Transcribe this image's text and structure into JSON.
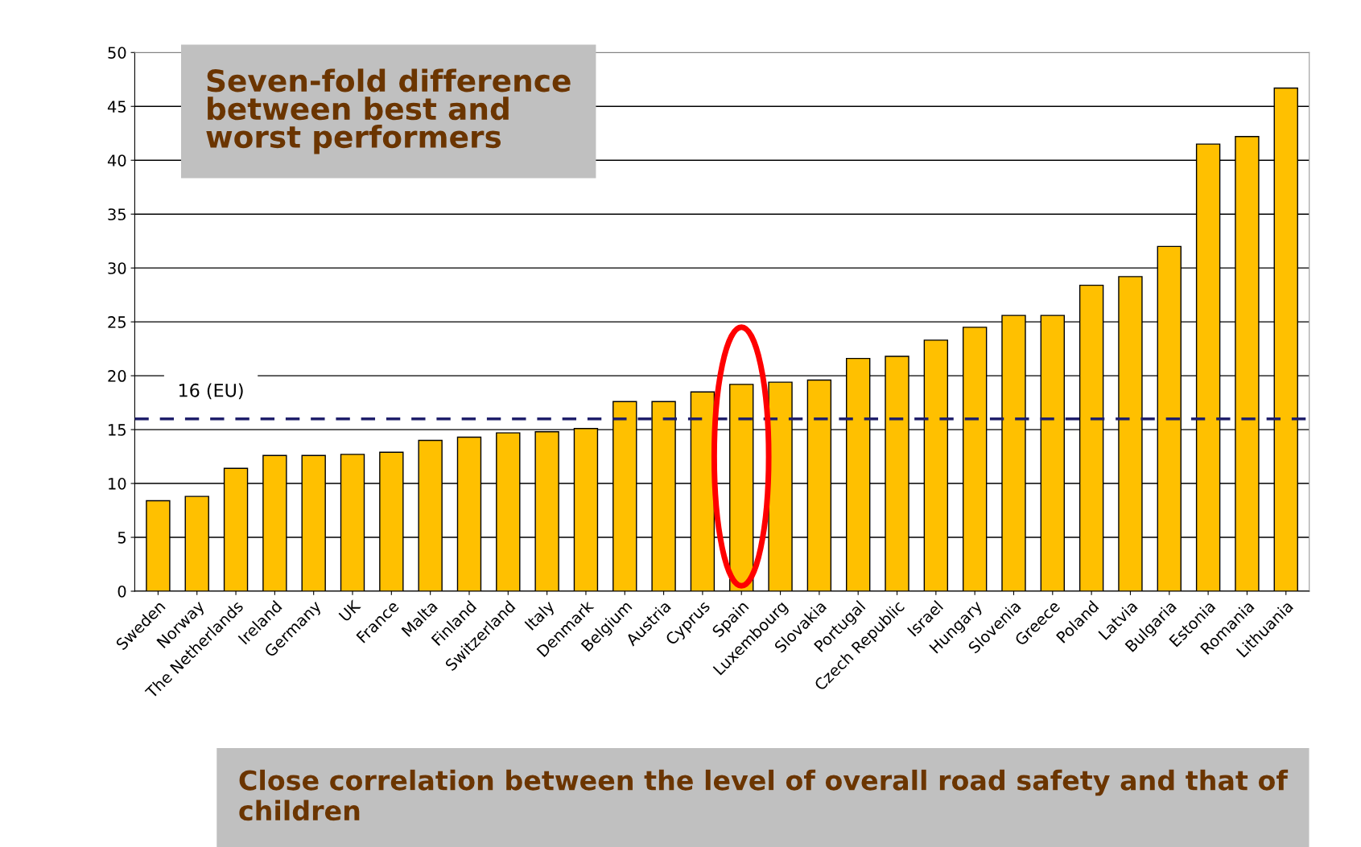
{
  "chart_data": {
    "type": "bar",
    "categories": [
      "Sweden",
      "Norway",
      "The Netherlands",
      "Ireland",
      "Germany",
      "UK",
      "France",
      "Malta",
      "Finland",
      "Switzerland",
      "Italy",
      "Denmark",
      "Belgium",
      "Austria",
      "Cyprus",
      "Spain",
      "Luxembourg",
      "Slovakia",
      "Portugal",
      "Czech Republic",
      "Israel",
      "Hungary",
      "Slovenia",
      "Greece",
      "Poland",
      "Latvia",
      "Bulgaria",
      "Estonia",
      "Romania",
      "Lithuania"
    ],
    "values": [
      8.4,
      8.8,
      11.4,
      12.6,
      12.6,
      12.7,
      12.9,
      14.0,
      14.3,
      14.7,
      14.8,
      15.1,
      17.6,
      17.6,
      18.5,
      19.2,
      19.4,
      19.6,
      21.6,
      21.8,
      23.3,
      24.5,
      25.6,
      25.6,
      28.4,
      29.2,
      32.0,
      41.5,
      42.2,
      46.7
    ],
    "color": "#ffc000",
    "ylim": [
      0,
      50
    ],
    "yticks": [
      0,
      5,
      10,
      15,
      20,
      25,
      30,
      35,
      40,
      45,
      50
    ],
    "grid": "y",
    "ref_lines": [
      {
        "axis": "y",
        "value": 16,
        "label": "16 (EU)",
        "color": "#1f1f6b",
        "line_style": "dashed"
      }
    ],
    "annotations": [
      "Seven-fold difference\nbetween best and\nworst performers",
      "Close correlation between the level of overall road safety and that of children"
    ]
  }
}
